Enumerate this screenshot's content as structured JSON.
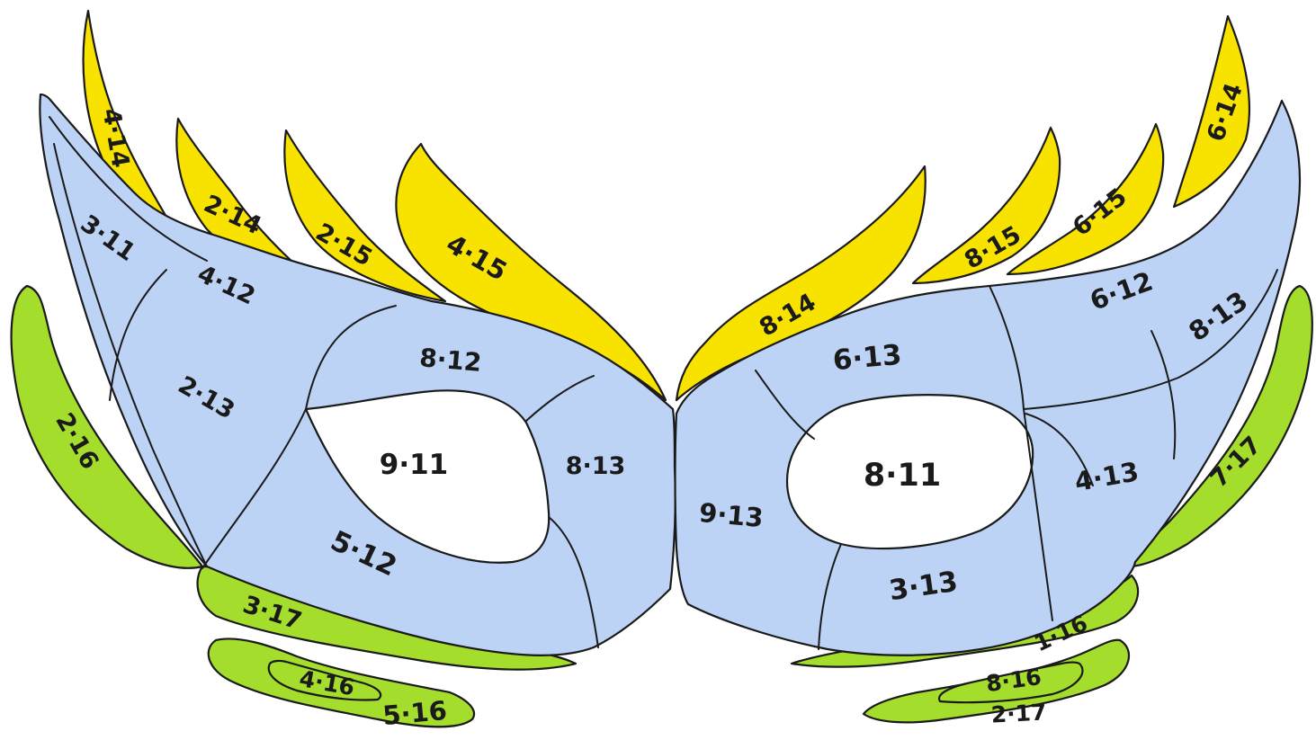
{
  "colors": {
    "blue": "#bcd3f5",
    "yellow": "#f8e300",
    "green": "#a5dd2c",
    "white": "#ffffff",
    "ink": "#1a1a1a"
  },
  "regions": {
    "left": {
      "feather_outer": "4·14",
      "feather_2": "2·14",
      "feather_3": "2·15",
      "feather_4": "4·15",
      "upper_outer": "3·11",
      "upper_mid": "4·12",
      "side": "2·13",
      "brow": "8·12",
      "eye": "9·11",
      "inner": "8·13",
      "cheek": "5·12",
      "ribbon_outer": "2·16",
      "ribbon_lower": "3·17",
      "loop_inner": "4·16",
      "loop_outer": "5·16"
    },
    "center": {
      "bridge": "9·13"
    },
    "right": {
      "feather_inner": "8·14",
      "feather_2": "8·15",
      "feather_3": "6·15",
      "feather_outer": "6·14",
      "upper_mid": "6·12",
      "upper_outer": "8·13",
      "brow": "6·13",
      "eye": "8·11",
      "side": "4·13",
      "cheek": "3·13",
      "ribbon_outer": "7·17",
      "ribbon_lower": "1·16",
      "loop_inner": "8·16",
      "loop_outer": "2·17"
    }
  }
}
